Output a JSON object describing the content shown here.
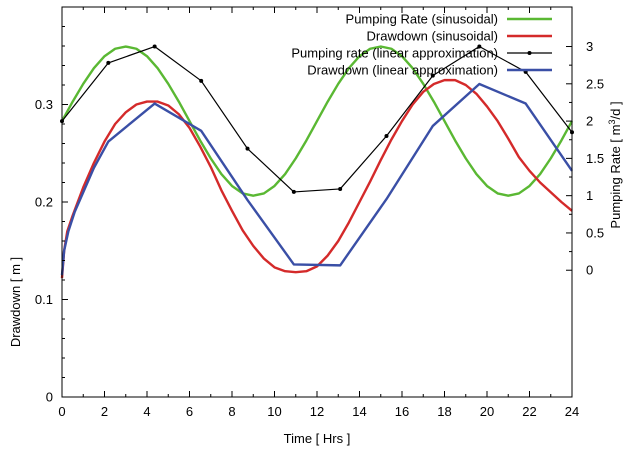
{
  "chart_data": {
    "type": "line",
    "title": "",
    "xlabel": "Time [ Hrs ]",
    "ylabel_left": "Drawdown [ m ]",
    "ylabel_right": {
      "pre": "Pumping Rate [ m",
      "sup": "3",
      "post": "/d ]"
    },
    "xlim": [
      0,
      24
    ],
    "ylim_left": [
      0,
      0.4
    ],
    "ylim_right": [
      -1.7,
      3.53
    ],
    "x_ticks": [
      0,
      2,
      4,
      6,
      8,
      10,
      12,
      14,
      16,
      18,
      20,
      22,
      24
    ],
    "y_ticks_left": [
      0,
      0.1,
      0.2,
      0.3
    ],
    "y_ticks_right": [
      0,
      0.5,
      1,
      1.5,
      2,
      2.5,
      3
    ],
    "grid": false,
    "legend_position": "top-right",
    "series": [
      {
        "name": "Pumping Rate (sinusoidal)",
        "axis": "right",
        "color": "#5ab833",
        "style": "line",
        "x": [
          0,
          0.5,
          1,
          1.5,
          2,
          2.5,
          3,
          3.5,
          4,
          4.5,
          5,
          5.5,
          6,
          6.5,
          7,
          7.5,
          8,
          8.5,
          9,
          9.5,
          10,
          10.5,
          11,
          11.5,
          12,
          12.5,
          13,
          13.5,
          14,
          14.5,
          15,
          15.5,
          16,
          16.5,
          17,
          17.5,
          18,
          18.5,
          19,
          19.5,
          20,
          20.5,
          21,
          21.5,
          22,
          22.5,
          23,
          23.5,
          24
        ],
        "values": [
          2.0,
          2.26,
          2.5,
          2.71,
          2.87,
          2.97,
          3.0,
          2.97,
          2.87,
          2.71,
          2.5,
          2.26,
          2.0,
          1.74,
          1.5,
          1.29,
          1.13,
          1.03,
          1.0,
          1.03,
          1.13,
          1.29,
          1.5,
          1.74,
          2.0,
          2.26,
          2.5,
          2.71,
          2.87,
          2.97,
          3.0,
          2.97,
          2.87,
          2.71,
          2.5,
          2.26,
          2.0,
          1.74,
          1.5,
          1.29,
          1.13,
          1.03,
          1.0,
          1.03,
          1.13,
          1.29,
          1.5,
          1.74,
          2.0
        ]
      },
      {
        "name": "Drawdown (sinusoidal)",
        "axis": "left",
        "color": "#d42a2a",
        "style": "line",
        "x": [
          0,
          0.1,
          0.25,
          0.5,
          1,
          1.5,
          2,
          2.5,
          3,
          3.5,
          4,
          4.5,
          5,
          5.5,
          6,
          6.5,
          7,
          7.5,
          8,
          8.5,
          9,
          9.5,
          10,
          10.5,
          11,
          11.5,
          12,
          12.5,
          13,
          13.5,
          14,
          14.5,
          15,
          15.5,
          16,
          16.5,
          17,
          17.5,
          18,
          18.5,
          19,
          19.5,
          20,
          20.5,
          21,
          21.5,
          22,
          22.5,
          23,
          23.5,
          24
        ],
        "values": [
          0.122,
          0.15,
          0.17,
          0.186,
          0.215,
          0.24,
          0.262,
          0.28,
          0.292,
          0.3,
          0.303,
          0.303,
          0.299,
          0.29,
          0.276,
          0.257,
          0.236,
          0.212,
          0.191,
          0.171,
          0.155,
          0.142,
          0.133,
          0.129,
          0.128,
          0.129,
          0.134,
          0.145,
          0.16,
          0.179,
          0.2,
          0.221,
          0.243,
          0.264,
          0.283,
          0.3,
          0.313,
          0.321,
          0.325,
          0.325,
          0.32,
          0.311,
          0.298,
          0.283,
          0.265,
          0.246,
          0.232,
          0.22,
          0.21,
          0.2,
          0.191
        ]
      },
      {
        "name": "Pumping rate (linear approximation)",
        "axis": "right",
        "color": "#000000",
        "style": "line-points",
        "x": [
          0,
          2.18,
          4.36,
          6.55,
          8.73,
          10.91,
          13.09,
          15.27,
          17.45,
          19.64,
          21.82,
          24
        ],
        "values": [
          2.0,
          2.78,
          3.0,
          2.54,
          1.63,
          1.05,
          1.09,
          1.8,
          2.61,
          3.0,
          2.66,
          1.85
        ]
      },
      {
        "name": "Drawdown (linear approximation)",
        "axis": "left",
        "color": "#3a4fa6",
        "style": "line",
        "x": [
          0,
          0.1,
          0.3,
          0.6,
          1,
          1.5,
          2.18,
          4.36,
          6.55,
          8.73,
          10.91,
          13.09,
          15.27,
          17.45,
          19.64,
          21.82,
          24
        ],
        "values": [
          0.125,
          0.15,
          0.17,
          0.19,
          0.21,
          0.235,
          0.262,
          0.301,
          0.273,
          0.202,
          0.136,
          0.135,
          0.203,
          0.278,
          0.321,
          0.301,
          0.232
        ]
      }
    ]
  }
}
